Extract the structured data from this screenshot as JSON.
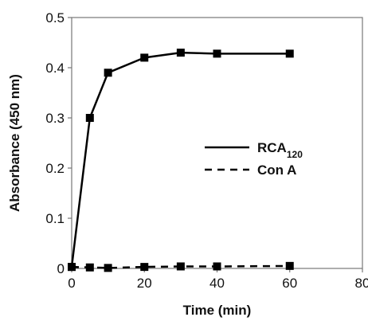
{
  "chart_data": {
    "type": "line",
    "xlabel": "Time (min)",
    "ylabel": "Absorbance (450 nm)",
    "xlim": [
      0,
      80
    ],
    "ylim": [
      0,
      0.5
    ],
    "x_ticks": [
      0,
      20,
      40,
      60,
      80
    ],
    "y_ticks": [
      0,
      0.1,
      0.2,
      0.3,
      0.4,
      0.5
    ],
    "x_tick_labels": [
      "0",
      "20",
      "40",
      "60",
      "80"
    ],
    "y_tick_labels": [
      "0",
      "0.1",
      "0.2",
      "0.3",
      "0.4",
      "0.5"
    ],
    "grid": false,
    "legend_position": "center-right",
    "marker": "square",
    "series": [
      {
        "name": "RCA",
        "name_subscript": "120",
        "line_style": "solid",
        "color": "#000000",
        "x": [
          0,
          5,
          10,
          20,
          30,
          40,
          60
        ],
        "y": [
          0.003,
          0.3,
          0.39,
          0.42,
          0.43,
          0.428,
          0.428
        ]
      },
      {
        "name": "Con A",
        "line_style": "dashed",
        "color": "#000000",
        "x": [
          0,
          5,
          10,
          20,
          30,
          40,
          60
        ],
        "y": [
          0.003,
          0.002,
          0.001,
          0.003,
          0.004,
          0.004,
          0.005
        ]
      }
    ]
  }
}
